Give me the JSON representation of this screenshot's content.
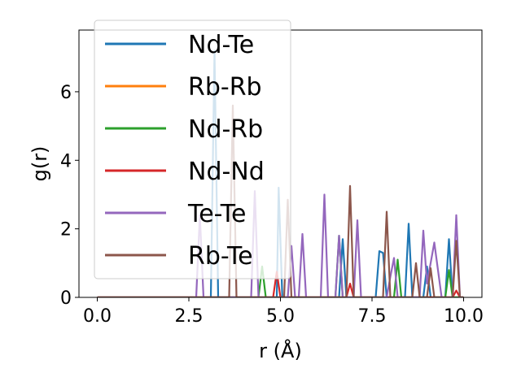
{
  "chart_data": {
    "type": "line",
    "title": "",
    "xlabel": "r (Å)",
    "ylabel": "g(r)",
    "xlim": [
      -0.5,
      10.5
    ],
    "ylim": [
      0,
      7.8
    ],
    "xticks": [
      0.0,
      2.5,
      5.0,
      7.5,
      10.0
    ],
    "xtick_labels": [
      "0.0",
      "2.5",
      "5.0",
      "7.5",
      "10.0"
    ],
    "yticks": [
      0,
      2,
      4,
      6
    ],
    "ytick_labels": [
      "0",
      "2",
      "4",
      "6"
    ],
    "grid": false,
    "legend_position": "upper-left",
    "series": [
      {
        "name": "Nd-Te",
        "color": "#1f77b4",
        "points": [
          [
            0,
            0
          ],
          [
            3.1,
            0
          ],
          [
            3.2,
            7.2
          ],
          [
            3.3,
            0
          ],
          [
            4.9,
            0
          ],
          [
            4.95,
            3.2
          ],
          [
            5.05,
            0
          ],
          [
            6.6,
            0
          ],
          [
            6.7,
            1.7
          ],
          [
            6.8,
            0
          ],
          [
            7.6,
            0
          ],
          [
            7.7,
            1.35
          ],
          [
            7.8,
            1.3
          ],
          [
            7.9,
            0
          ],
          [
            8.4,
            0
          ],
          [
            8.5,
            2.15
          ],
          [
            8.6,
            0
          ],
          [
            8.9,
            0
          ],
          [
            9.0,
            0.9
          ],
          [
            9.1,
            0
          ],
          [
            9.5,
            0
          ],
          [
            9.6,
            1.7
          ],
          [
            9.7,
            0
          ],
          [
            10.0,
            0
          ]
        ]
      },
      {
        "name": "Rb-Rb",
        "color": "#ff7f0e",
        "points": [
          [
            0,
            0
          ],
          [
            10.0,
            0
          ]
        ]
      },
      {
        "name": "Nd-Rb",
        "color": "#2ca02c",
        "points": [
          [
            0,
            0
          ],
          [
            4.4,
            0
          ],
          [
            4.5,
            0.9
          ],
          [
            4.6,
            0
          ],
          [
            6.5,
            0
          ],
          [
            6.6,
            1.8
          ],
          [
            6.7,
            0
          ],
          [
            8.1,
            0
          ],
          [
            8.2,
            1.1
          ],
          [
            8.3,
            0
          ],
          [
            9.5,
            0
          ],
          [
            9.6,
            0.8
          ],
          [
            9.7,
            0
          ],
          [
            10.0,
            0
          ]
        ]
      },
      {
        "name": "Nd-Nd",
        "color": "#d62728",
        "points": [
          [
            0,
            0
          ],
          [
            4.8,
            0
          ],
          [
            4.9,
            0.75
          ],
          [
            5.0,
            0
          ],
          [
            6.8,
            0
          ],
          [
            6.9,
            0.4
          ],
          [
            7.0,
            0
          ],
          [
            9.7,
            0
          ],
          [
            9.8,
            0.2
          ],
          [
            9.9,
            0
          ],
          [
            10.0,
            0
          ]
        ]
      },
      {
        "name": "Te-Te",
        "color": "#9467bd",
        "points": [
          [
            0,
            0
          ],
          [
            2.7,
            0
          ],
          [
            2.8,
            2.4
          ],
          [
            2.9,
            0
          ],
          [
            4.2,
            0
          ],
          [
            4.3,
            3.1
          ],
          [
            4.4,
            0
          ],
          [
            5.2,
            0
          ],
          [
            5.3,
            1.5
          ],
          [
            5.4,
            0
          ],
          [
            5.5,
            0
          ],
          [
            5.6,
            1.85
          ],
          [
            5.7,
            0
          ],
          [
            6.1,
            0
          ],
          [
            6.2,
            3.0
          ],
          [
            6.3,
            0
          ],
          [
            6.5,
            0
          ],
          [
            6.6,
            1.8
          ],
          [
            6.7,
            0
          ],
          [
            7.0,
            0
          ],
          [
            7.1,
            2.25
          ],
          [
            7.2,
            0
          ],
          [
            7.9,
            0
          ],
          [
            8.0,
            0.6
          ],
          [
            8.1,
            1.15
          ],
          [
            8.2,
            0
          ],
          [
            8.8,
            0
          ],
          [
            8.9,
            1.95
          ],
          [
            9.0,
            0.4
          ],
          [
            9.1,
            1.0
          ],
          [
            9.2,
            1.6
          ],
          [
            9.3,
            0.8
          ],
          [
            9.4,
            0
          ],
          [
            9.7,
            0
          ],
          [
            9.8,
            2.4
          ],
          [
            9.9,
            0
          ],
          [
            10.0,
            0
          ]
        ]
      },
      {
        "name": "Rb-Te",
        "color": "#8c564b",
        "points": [
          [
            0,
            0
          ],
          [
            3.6,
            0
          ],
          [
            3.7,
            5.6
          ],
          [
            3.8,
            0
          ],
          [
            5.1,
            0
          ],
          [
            5.2,
            2.85
          ],
          [
            5.3,
            0
          ],
          [
            6.8,
            0
          ],
          [
            6.9,
            3.25
          ],
          [
            7.0,
            0
          ],
          [
            7.8,
            0
          ],
          [
            7.9,
            2.5
          ],
          [
            8.0,
            0
          ],
          [
            8.6,
            0
          ],
          [
            8.7,
            1.0
          ],
          [
            8.8,
            0
          ],
          [
            9.0,
            0
          ],
          [
            9.1,
            0.85
          ],
          [
            9.2,
            0
          ],
          [
            9.7,
            0
          ],
          [
            9.8,
            1.65
          ],
          [
            9.9,
            0
          ],
          [
            10.0,
            0
          ]
        ]
      }
    ]
  }
}
